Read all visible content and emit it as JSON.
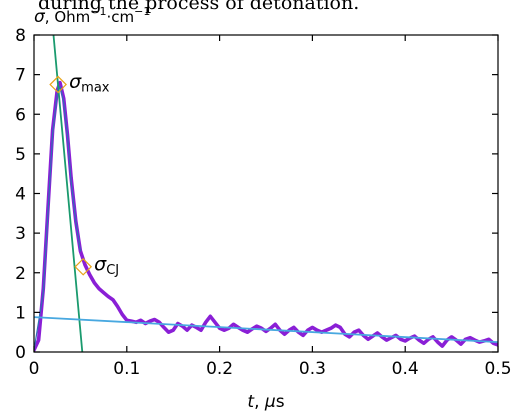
{
  "page": {
    "caption_fragment": "during the process of detonation."
  },
  "chart_data": {
    "type": "line",
    "ylabel_var": "σ",
    "ylabel_unit": ", Ohm",
    "ylabel_exp1": "−1",
    "ylabel_mid": "·cm",
    "ylabel_exp2": "−1",
    "xlabel_var": "t",
    "xlabel_sep": ", ",
    "xlabel_mu": "μ",
    "xlabel_unit": "s",
    "xlim": [
      0,
      0.5
    ],
    "ylim": [
      0,
      8
    ],
    "x_ticks": [
      0,
      0.1,
      0.2,
      0.3,
      0.4,
      0.5
    ],
    "x_tick_labels": [
      "0",
      "0.1",
      "0.2",
      "0.3",
      "0.4",
      "0.5"
    ],
    "y_ticks": [
      0,
      1,
      2,
      3,
      4,
      5,
      6,
      7,
      8
    ],
    "y_tick_labels": [
      "0",
      "1",
      "2",
      "3",
      "4",
      "5",
      "6",
      "7",
      "8"
    ],
    "grid": false,
    "colors": {
      "measured": "#8a1fd6",
      "fit_thin": "#2f6fb5",
      "steep_line": "#1a9a6e",
      "tail_line": "#48a8e0",
      "marker": "#e8a418"
    },
    "series": [
      {
        "x": [
          0.0,
          0.005,
          0.01,
          0.015,
          0.02,
          0.025,
          0.028,
          0.032,
          0.036,
          0.04,
          0.045,
          0.05,
          0.055,
          0.06,
          0.065,
          0.07,
          0.075,
          0.08,
          0.085,
          0.09,
          0.095,
          0.1,
          0.105,
          0.11,
          0.115,
          0.12,
          0.125,
          0.13,
          0.135,
          0.14,
          0.145,
          0.15,
          0.155,
          0.16,
          0.165,
          0.17,
          0.175,
          0.18,
          0.185,
          0.19,
          0.195,
          0.2,
          0.205,
          0.21,
          0.215,
          0.22,
          0.225,
          0.23,
          0.235,
          0.24,
          0.245,
          0.25,
          0.255,
          0.26,
          0.265,
          0.27,
          0.275,
          0.28,
          0.285,
          0.29,
          0.295,
          0.3,
          0.305,
          0.31,
          0.315,
          0.32,
          0.325,
          0.33,
          0.335,
          0.34,
          0.345,
          0.35,
          0.355,
          0.36,
          0.365,
          0.37,
          0.375,
          0.38,
          0.385,
          0.39,
          0.395,
          0.4,
          0.405,
          0.41,
          0.415,
          0.42,
          0.425,
          0.43,
          0.435,
          0.44,
          0.445,
          0.45,
          0.455,
          0.46,
          0.465,
          0.47,
          0.475,
          0.48,
          0.485,
          0.49,
          0.495,
          0.5
        ],
        "y": [
          0.05,
          0.3,
          1.6,
          3.6,
          5.6,
          6.6,
          6.8,
          6.4,
          5.5,
          4.4,
          3.3,
          2.55,
          2.2,
          1.95,
          1.75,
          1.6,
          1.5,
          1.4,
          1.32,
          1.15,
          0.95,
          0.8,
          0.78,
          0.75,
          0.8,
          0.72,
          0.78,
          0.82,
          0.75,
          0.62,
          0.5,
          0.55,
          0.72,
          0.65,
          0.55,
          0.68,
          0.62,
          0.55,
          0.75,
          0.9,
          0.75,
          0.6,
          0.55,
          0.6,
          0.7,
          0.62,
          0.55,
          0.5,
          0.58,
          0.65,
          0.6,
          0.52,
          0.6,
          0.7,
          0.55,
          0.45,
          0.55,
          0.62,
          0.5,
          0.42,
          0.55,
          0.62,
          0.55,
          0.5,
          0.55,
          0.6,
          0.68,
          0.62,
          0.45,
          0.38,
          0.5,
          0.55,
          0.42,
          0.32,
          0.4,
          0.48,
          0.38,
          0.3,
          0.36,
          0.42,
          0.32,
          0.28,
          0.35,
          0.4,
          0.3,
          0.22,
          0.32,
          0.38,
          0.25,
          0.15,
          0.3,
          0.38,
          0.3,
          0.2,
          0.32,
          0.36,
          0.3,
          0.25,
          0.28,
          0.32,
          0.22,
          0.18
        ]
      },
      {
        "x": [
          0.0,
          0.01,
          0.02,
          0.025,
          0.028,
          0.032,
          0.036,
          0.04,
          0.045,
          0.05
        ],
        "y": [
          0.05,
          1.5,
          5.5,
          6.5,
          6.7,
          6.3,
          5.5,
          4.3,
          3.3,
          2.55
        ]
      },
      {
        "x": [
          0.021,
          0.052
        ],
        "y": [
          8.0,
          0.0
        ]
      },
      {
        "x": [
          0.0,
          0.5
        ],
        "y": [
          0.88,
          0.25
        ]
      }
    ],
    "markers": [
      {
        "x": 0.026,
        "y": 6.75,
        "label_main": "σ",
        "label_sub": "max"
      },
      {
        "x": 0.053,
        "y": 2.15,
        "label_main": "σ",
        "label_sub": "CJ"
      }
    ]
  }
}
